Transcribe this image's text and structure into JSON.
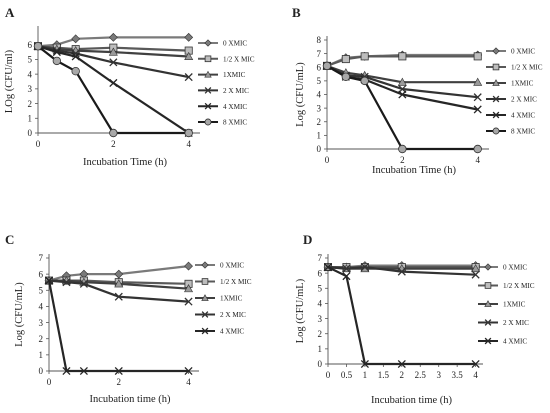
{
  "chart_data": [
    {
      "panel": "A",
      "type": "line",
      "xlabel": "Incubation Time (h)",
      "ylabel": "LOg (CFU/ml)",
      "xlim": [
        0,
        4.3
      ],
      "ylim": [
        0,
        7
      ],
      "xticks": [
        0,
        2,
        4
      ],
      "yticks": [
        0,
        1,
        2,
        3,
        4,
        5,
        6
      ],
      "grid": false,
      "legend_position": "right",
      "series": [
        {
          "name": "0 XMIC",
          "marker": "diamond",
          "color": "#7a7a7a",
          "x": [
            0,
            0.5,
            1,
            2,
            4
          ],
          "y": [
            5.9,
            6.0,
            6.4,
            6.5,
            6.5
          ]
        },
        {
          "name": "1/2 X MIC",
          "marker": "square",
          "color": "#595959",
          "x": [
            0,
            0.5,
            1,
            2,
            4
          ],
          "y": [
            5.9,
            5.8,
            5.7,
            5.8,
            5.6
          ]
        },
        {
          "name": "1XMIC",
          "marker": "triangle",
          "color": "#404040",
          "x": [
            0,
            0.5,
            1,
            2,
            4
          ],
          "y": [
            5.9,
            5.7,
            5.6,
            5.5,
            5.2
          ]
        },
        {
          "name": "2 X MIC",
          "marker": "x",
          "color": "#333333",
          "x": [
            0,
            0.5,
            1,
            2,
            4
          ],
          "y": [
            5.9,
            5.6,
            5.4,
            4.8,
            3.8
          ]
        },
        {
          "name": "4 XMIC",
          "marker": "x",
          "color": "#262626",
          "x": [
            0,
            0.5,
            1,
            2,
            4
          ],
          "y": [
            5.9,
            5.5,
            5.2,
            3.4,
            0
          ]
        },
        {
          "name": "8 XMIC",
          "marker": "circle",
          "color": "#1a1a1a",
          "x": [
            0,
            0.5,
            1,
            2,
            4
          ],
          "y": [
            5.9,
            4.9,
            4.2,
            0,
            0
          ]
        }
      ]
    },
    {
      "panel": "B",
      "type": "line",
      "xlabel": "Incubation Time (h)",
      "ylabel": "Log (CFU/mL)",
      "xlim": [
        0,
        4.3
      ],
      "ylim": [
        0,
        8
      ],
      "xticks": [
        0,
        2,
        4
      ],
      "yticks": [
        0,
        1,
        2,
        3,
        4,
        5,
        6,
        7,
        8
      ],
      "grid": false,
      "legend_position": "right",
      "series": [
        {
          "name": "0 XMIC",
          "marker": "diamond",
          "color": "#7a7a7a",
          "x": [
            0,
            0.5,
            1,
            2,
            4
          ],
          "y": [
            6.1,
            6.7,
            6.8,
            6.9,
            6.9
          ]
        },
        {
          "name": "1/2 X MIC",
          "marker": "square",
          "color": "#595959",
          "x": [
            0,
            0.5,
            1,
            2,
            4
          ],
          "y": [
            6.1,
            6.6,
            6.8,
            6.8,
            6.8
          ]
        },
        {
          "name": "1XMIC",
          "marker": "triangle",
          "color": "#404040",
          "x": [
            0,
            0.5,
            1,
            2,
            4
          ],
          "y": [
            6.1,
            5.6,
            5.4,
            4.9,
            4.9
          ]
        },
        {
          "name": "2 X MIC",
          "marker": "x",
          "color": "#333333",
          "x": [
            0,
            0.5,
            1,
            2,
            4
          ],
          "y": [
            6.1,
            5.4,
            5.3,
            4.4,
            3.8
          ]
        },
        {
          "name": "4 XMIC",
          "marker": "x",
          "color": "#262626",
          "x": [
            0,
            0.5,
            1,
            2,
            4
          ],
          "y": [
            6.1,
            5.3,
            5.1,
            4.0,
            2.9
          ]
        },
        {
          "name": "8 XMIC",
          "marker": "circle",
          "color": "#1a1a1a",
          "x": [
            0,
            0.5,
            1,
            2,
            4
          ],
          "y": [
            6.1,
            5.3,
            5.0,
            0,
            0
          ]
        }
      ]
    },
    {
      "panel": "C",
      "type": "line",
      "xlabel": "Incubation time (h)",
      "ylabel": "Log (CFU/mL)",
      "xlim": [
        0,
        4.3
      ],
      "ylim": [
        0,
        7
      ],
      "xticks": [
        0,
        2,
        4
      ],
      "yticks": [
        0,
        1,
        2,
        3,
        4,
        5,
        6,
        7
      ],
      "grid": false,
      "legend_position": "right",
      "series": [
        {
          "name": "0 XMIC",
          "marker": "diamond",
          "color": "#7a7a7a",
          "x": [
            0,
            0.5,
            1,
            2,
            4
          ],
          "y": [
            5.6,
            5.9,
            6.0,
            6.0,
            6.5
          ]
        },
        {
          "name": "1/2 X MIC",
          "marker": "square",
          "color": "#595959",
          "x": [
            0,
            0.5,
            1,
            2,
            4
          ],
          "y": [
            5.6,
            5.6,
            5.6,
            5.5,
            5.4
          ]
        },
        {
          "name": "1XMIC",
          "marker": "triangle",
          "color": "#404040",
          "x": [
            0,
            0.5,
            1,
            2,
            4
          ],
          "y": [
            5.6,
            5.6,
            5.5,
            5.4,
            5.1
          ]
        },
        {
          "name": "2 X MIC",
          "marker": "x",
          "color": "#333333",
          "x": [
            0,
            0.5,
            1,
            2,
            4
          ],
          "y": [
            5.6,
            5.5,
            5.4,
            4.6,
            4.3
          ]
        },
        {
          "name": "4 XMIC",
          "marker": "x",
          "color": "#262626",
          "x": [
            0,
            0.5,
            1,
            2,
            4
          ],
          "y": [
            5.6,
            0,
            0,
            0,
            0
          ]
        }
      ]
    },
    {
      "panel": "D",
      "type": "line",
      "xlabel": "Incubation time (h)",
      "ylabel": "Log (CFU/mL)",
      "xlim": [
        0,
        4.2
      ],
      "ylim": [
        0,
        7
      ],
      "xticks": [
        0,
        0.5,
        1,
        1.5,
        2,
        2.5,
        3,
        3.5,
        4
      ],
      "yticks": [
        0,
        1,
        2,
        3,
        4,
        5,
        6,
        7
      ],
      "grid": false,
      "legend_position": "right",
      "series": [
        {
          "name": "0 XMIC",
          "marker": "diamond",
          "color": "#7a7a7a",
          "x": [
            0,
            0.5,
            1,
            2,
            4
          ],
          "y": [
            6.4,
            6.4,
            6.5,
            6.5,
            6.5
          ]
        },
        {
          "name": "1/2 X MIC",
          "marker": "square",
          "color": "#595959",
          "x": [
            0,
            0.5,
            1,
            2,
            4
          ],
          "y": [
            6.4,
            6.4,
            6.4,
            6.4,
            6.4
          ]
        },
        {
          "name": "1XMIC",
          "marker": "triangle",
          "color": "#404040",
          "x": [
            0,
            0.5,
            1,
            2,
            4
          ],
          "y": [
            6.4,
            6.3,
            6.3,
            6.3,
            6.3
          ]
        },
        {
          "name": "2 X MIC",
          "marker": "x",
          "color": "#333333",
          "x": [
            0,
            0.5,
            1,
            2,
            4
          ],
          "y": [
            6.4,
            6.3,
            6.4,
            6.1,
            5.9
          ]
        },
        {
          "name": "4 XMIC",
          "marker": "x",
          "color": "#262626",
          "x": [
            0,
            0.5,
            1,
            2,
            4
          ],
          "y": [
            6.4,
            5.8,
            0,
            0,
            0
          ]
        }
      ]
    }
  ]
}
